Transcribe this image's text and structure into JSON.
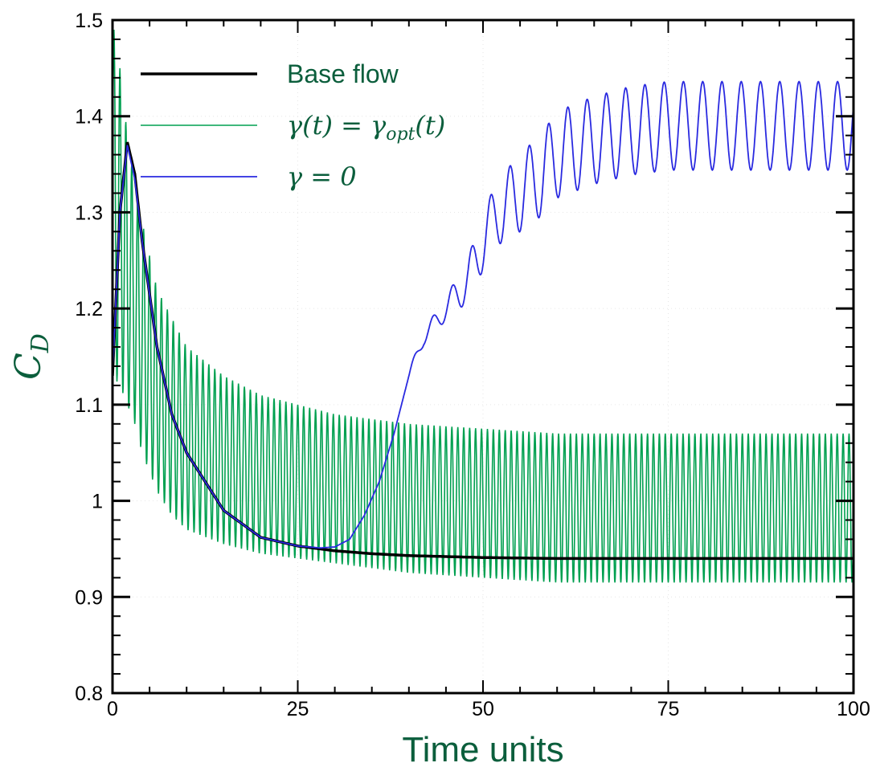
{
  "chart_data": {
    "type": "line",
    "xlabel": "Time units",
    "ylabel": "C",
    "ylabel_sub": "D",
    "xlim": [
      0,
      100
    ],
    "ylim": [
      0.8,
      1.5
    ],
    "x_ticks": [
      0,
      25,
      50,
      75,
      100
    ],
    "x_tick_labels": [
      "0",
      "25",
      "50",
      "75",
      "100"
    ],
    "y_ticks": [
      0.8,
      0.9,
      1.0,
      1.1,
      1.2,
      1.3,
      1.4,
      1.5
    ],
    "y_tick_labels": [
      "0.8",
      "0.9",
      "1",
      "1.1",
      "1.2",
      "1.3",
      "1.4",
      "1.5"
    ],
    "grid": false,
    "legend_position": "top-left",
    "label_color": "#0b5e3c",
    "series": [
      {
        "name": "Base flow",
        "color": "#000000",
        "x": [
          0,
          1,
          2,
          3,
          4,
          6,
          8,
          10,
          15,
          20,
          25,
          30,
          35,
          40,
          50,
          60,
          70,
          80,
          90,
          100
        ],
        "y": [
          1.13,
          1.3,
          1.373,
          1.34,
          1.27,
          1.16,
          1.09,
          1.05,
          0.99,
          0.962,
          0.953,
          0.948,
          0.945,
          0.943,
          0.941,
          0.94,
          0.94,
          0.94,
          0.94,
          0.94
        ]
      },
      {
        "name_parts": [
          "γ(t) = γ",
          "opt",
          "(t)"
        ],
        "color": "#00a050",
        "envelope_x": [
          0,
          1,
          2,
          3,
          4,
          6,
          8,
          10,
          15,
          20,
          25,
          30,
          35,
          40,
          50,
          60,
          70,
          80,
          90,
          100
        ],
        "envelope_upper": [
          1.5,
          1.45,
          1.38,
          1.33,
          1.29,
          1.22,
          1.19,
          1.16,
          1.13,
          1.11,
          1.1,
          1.09,
          1.085,
          1.08,
          1.075,
          1.07,
          1.07,
          1.07,
          1.07,
          1.07
        ],
        "envelope_lower": [
          1.13,
          1.12,
          1.1,
          1.08,
          1.05,
          1.01,
          0.985,
          0.97,
          0.955,
          0.945,
          0.94,
          0.935,
          0.93,
          0.925,
          0.92,
          0.915,
          0.915,
          0.915,
          0.915,
          0.915
        ],
        "oscillation_period": 0.8
      },
      {
        "name": "γ = 0",
        "color": "#2a2ae0",
        "x": [
          0,
          1,
          2,
          3,
          4,
          6,
          8,
          10,
          15,
          20,
          25,
          28,
          30,
          32,
          34,
          36,
          38,
          40,
          42,
          44,
          46,
          48,
          50,
          52,
          55,
          58,
          60,
          65,
          70,
          75,
          80,
          85,
          90,
          95,
          100
        ],
        "y": [
          1.13,
          1.3,
          1.37,
          1.335,
          1.27,
          1.16,
          1.09,
          1.05,
          0.99,
          0.962,
          0.953,
          0.951,
          0.952,
          0.96,
          0.985,
          1.02,
          1.07,
          1.13,
          1.17,
          1.19,
          1.21,
          1.23,
          1.27,
          1.3,
          1.32,
          1.34,
          1.36,
          1.375,
          1.385,
          1.39,
          1.39,
          1.39,
          1.39,
          1.39,
          1.39
        ],
        "oscillation_start": 40,
        "oscillation_period": 2.6,
        "oscillation_amplitude": [
          [
            40,
            0.005
          ],
          [
            45,
            0.012
          ],
          [
            50,
            0.03
          ],
          [
            55,
            0.04
          ],
          [
            60,
            0.045
          ],
          [
            70,
            0.046
          ],
          [
            100,
            0.046
          ]
        ]
      }
    ]
  }
}
